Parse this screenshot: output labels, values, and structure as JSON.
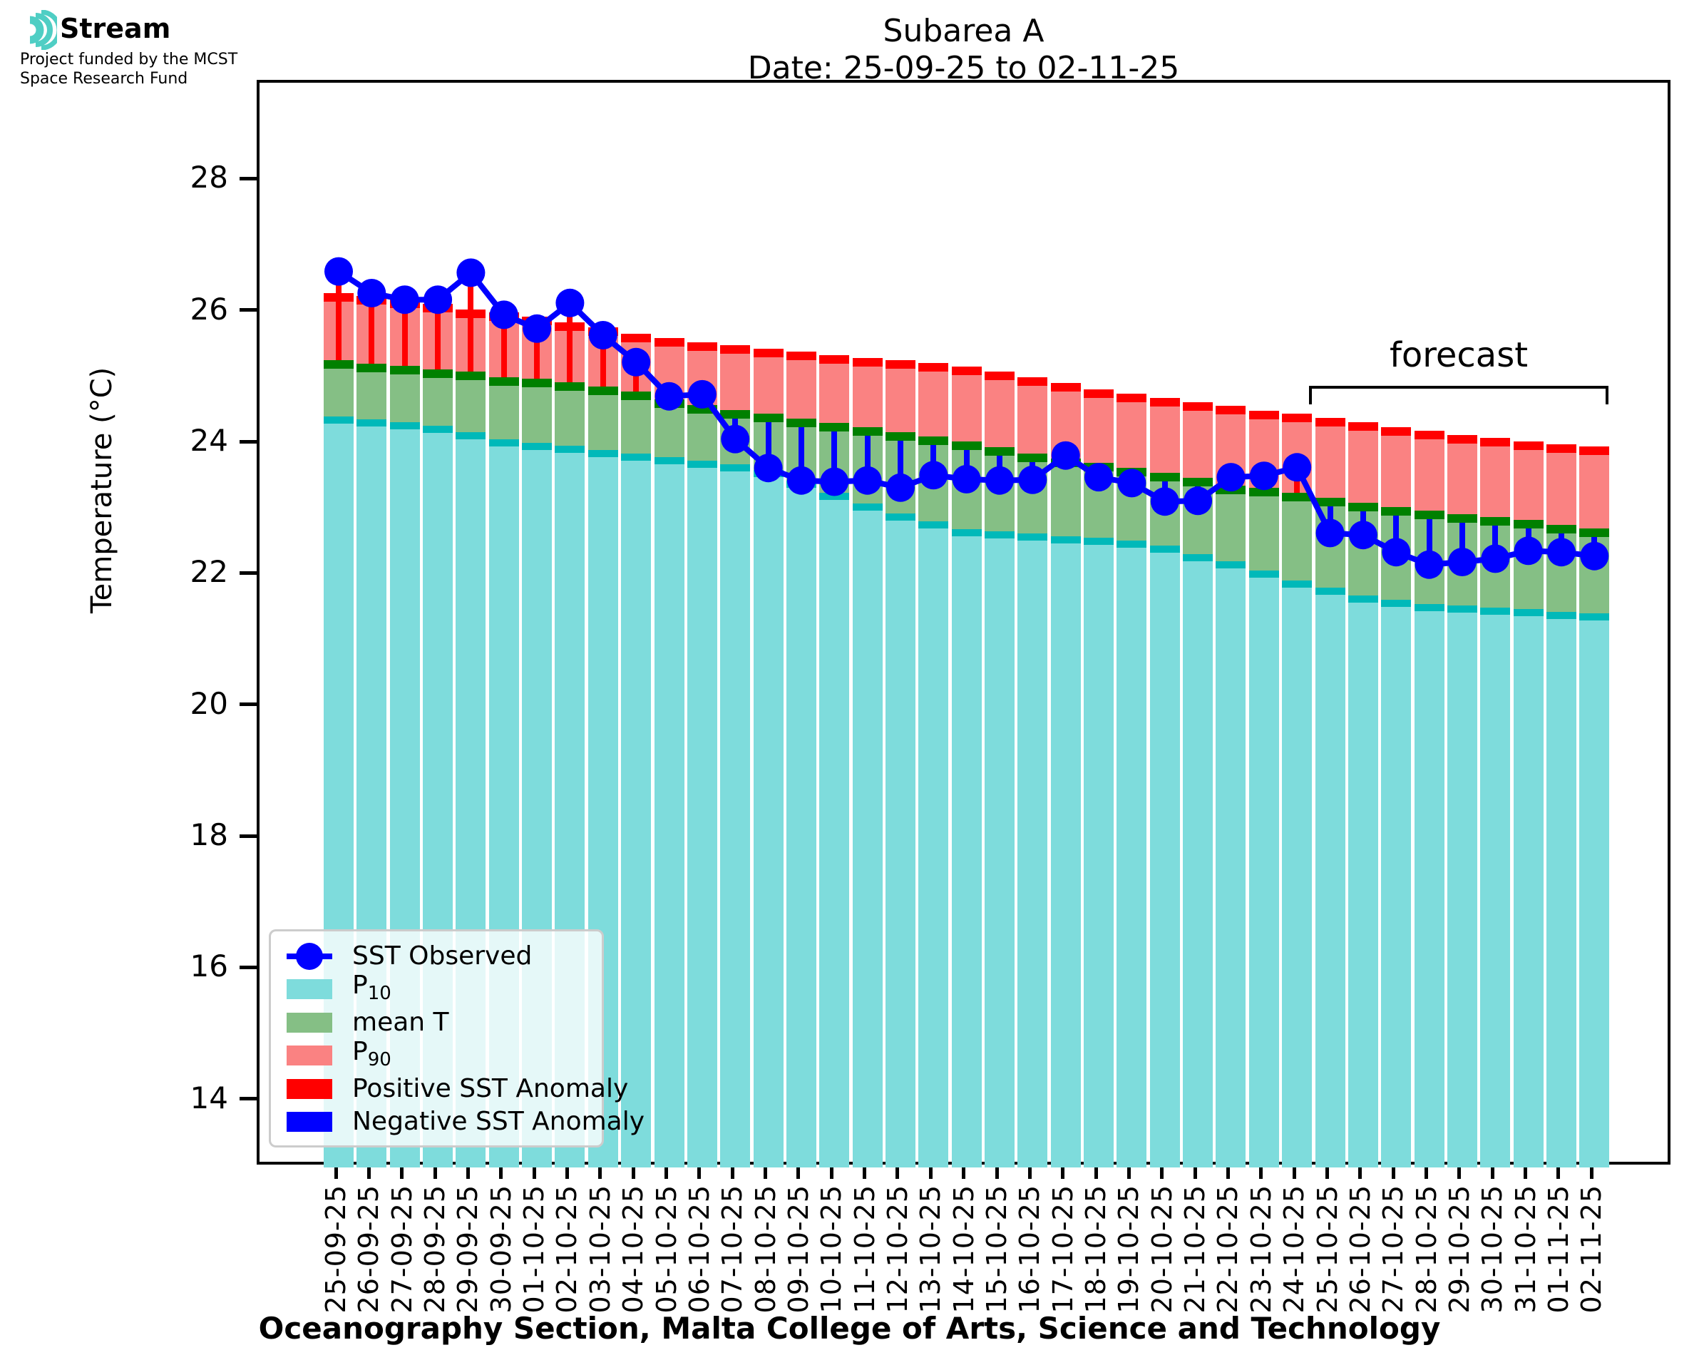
{
  "logo": {
    "brand": "Stream",
    "subtitle_line1": "Project funded by the MCST",
    "subtitle_line2": "Space Research Fund",
    "icon_color": "#4FCEC4"
  },
  "title": {
    "line1": "Subarea A",
    "line2": "Date: 25-09-25 to 02-11-25"
  },
  "forecast_label": "forecast",
  "axes": {
    "ylabel": "Temperature (°C)",
    "yticks": [
      14,
      16,
      18,
      20,
      22,
      24,
      26,
      28
    ],
    "ylim": [
      13,
      29.5
    ],
    "caption": "Oceanography Section, Malta College of Arts, Science and Technology"
  },
  "colors": {
    "p10_fill": "#7EDCDC",
    "p10_cap": "#00B9B9",
    "mean_fill": "#85BF85",
    "mean_cap": "#008000",
    "p90_fill": "#FA8282",
    "p90_cap": "#FF0000",
    "observed": "#0000FF",
    "positive_anomaly": "#FF0000",
    "negative_anomaly": "#0000FF"
  },
  "legend": {
    "items": [
      {
        "type": "marker-line",
        "label_main": "SST Observed",
        "label_sub": "",
        "color": "#0000FF"
      },
      {
        "type": "patch",
        "label_main": "P",
        "label_sub": "10",
        "color": "#7EDCDC"
      },
      {
        "type": "patch",
        "label_main": "mean T",
        "label_sub": "",
        "color": "#85BF85"
      },
      {
        "type": "patch",
        "label_main": "P",
        "label_sub": "90",
        "color": "#FA8282"
      },
      {
        "type": "patch",
        "label_main": "Positive SST Anomaly",
        "label_sub": "",
        "color": "#FF0000"
      },
      {
        "type": "patch",
        "label_main": "Negative SST Anomaly",
        "label_sub": "",
        "color": "#0000FF"
      }
    ]
  },
  "chart_data": {
    "type": "bar",
    "title": "Subarea A — Date: 25-09-25 to 02-11-25",
    "xlabel": "Oceanography Section, Malta College of Arts, Science and Technology",
    "ylabel": "Temperature (°C)",
    "ylim": [
      13,
      29.5
    ],
    "grid": false,
    "legend_position": "lower-left",
    "forecast_start_index": 30,
    "forecast_label": "forecast",
    "categories": [
      "25-09-25",
      "26-09-25",
      "27-09-25",
      "28-09-25",
      "29-09-25",
      "30-09-25",
      "01-10-25",
      "02-10-25",
      "03-10-25",
      "04-10-25",
      "05-10-25",
      "06-10-25",
      "07-10-25",
      "08-10-25",
      "09-10-25",
      "10-10-25",
      "11-10-25",
      "12-10-25",
      "13-10-25",
      "14-10-25",
      "15-10-25",
      "16-10-25",
      "17-10-25",
      "18-10-25",
      "19-10-25",
      "20-10-25",
      "21-10-25",
      "22-10-25",
      "23-10-25",
      "24-10-25",
      "25-10-25",
      "26-10-25",
      "27-10-25",
      "28-10-25",
      "29-10-25",
      "30-10-25",
      "31-10-25",
      "01-11-25",
      "02-11-25"
    ],
    "series": [
      {
        "name": "SST Observed",
        "values": [
          26.63,
          26.3,
          26.2,
          26.2,
          26.61,
          25.97,
          25.76,
          26.15,
          25.66,
          25.25,
          24.73,
          24.76,
          24.08,
          23.64,
          23.45,
          23.43,
          23.45,
          23.34,
          23.53,
          23.47,
          23.45,
          23.46,
          23.83,
          23.5,
          23.41,
          23.13,
          23.14,
          23.5,
          23.52,
          23.65,
          22.65,
          22.62,
          22.36,
          22.17,
          22.21,
          22.26,
          22.38,
          22.36,
          22.3
        ]
      },
      {
        "name": "P90",
        "values": [
          26.23,
          26.19,
          26.14,
          26.07,
          25.99,
          25.94,
          25.88,
          25.79,
          25.71,
          25.62,
          25.55,
          25.49,
          25.44,
          25.39,
          25.34,
          25.29,
          25.25,
          25.21,
          25.17,
          25.12,
          25.04,
          24.95,
          24.87,
          24.77,
          24.71,
          24.64,
          24.57,
          24.52,
          24.45,
          24.4,
          24.34,
          24.27,
          24.2,
          24.14,
          24.08,
          24.03,
          23.98,
          23.94,
          23.9
        ]
      },
      {
        "name": "mean T",
        "values": [
          25.21,
          25.16,
          25.13,
          25.07,
          25.04,
          24.96,
          24.93,
          24.88,
          24.81,
          24.74,
          24.62,
          24.53,
          24.46,
          24.4,
          24.33,
          24.26,
          24.19,
          24.12,
          24.05,
          23.98,
          23.89,
          23.79,
          23.72,
          23.65,
          23.58,
          23.5,
          23.43,
          23.31,
          23.27,
          23.2,
          23.12,
          23.04,
          22.98,
          22.93,
          22.87,
          22.83,
          22.78,
          22.71,
          22.66
        ]
      },
      {
        "name": "P10",
        "values": [
          24.37,
          24.33,
          24.28,
          24.23,
          24.13,
          24.02,
          23.97,
          23.92,
          23.86,
          23.8,
          23.75,
          23.7,
          23.64,
          23.55,
          23.39,
          23.21,
          23.04,
          22.89,
          22.77,
          22.66,
          22.62,
          22.59,
          22.55,
          22.52,
          22.48,
          22.41,
          22.28,
          22.17,
          22.03,
          21.87,
          21.76,
          21.65,
          21.58,
          21.52,
          21.49,
          21.46,
          21.44,
          21.4,
          21.37
        ]
      }
    ]
  }
}
